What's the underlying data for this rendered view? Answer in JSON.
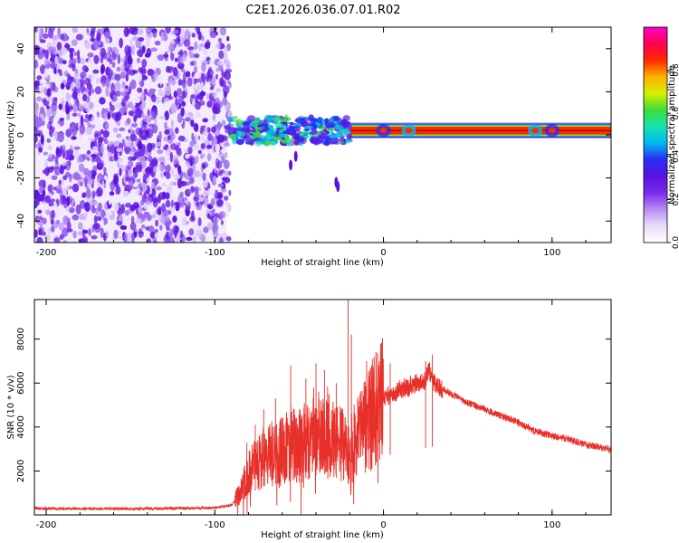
{
  "title": "C2E1.2026.036.07.01.R02",
  "colors": {
    "snr_line": "#e8302a",
    "colormap": [
      "#ffffff",
      "#e9ddfb",
      "#b78cf2",
      "#7b2bea",
      "#5a12e0",
      "#2a2cf5",
      "#00b9f0",
      "#14e3b0",
      "#3ddc3a",
      "#d6f000",
      "#ffb000",
      "#ff2a00",
      "#ff0050",
      "#ff00c8"
    ]
  },
  "chart_data": [
    {
      "type": "heatmap",
      "name": "spectrogram",
      "xlabel": "Height of straight line (km)",
      "ylabel": "Frequency (Hz)",
      "xlim": [
        -207,
        135
      ],
      "ylim": [
        -50,
        50
      ],
      "xticks": [
        -200,
        -100,
        0,
        100
      ],
      "yticks": [
        -40,
        -20,
        0,
        20,
        40
      ],
      "xtick_labels": [
        "-200",
        "-100",
        "0",
        "100"
      ],
      "ytick_labels": [
        "-40",
        "-20",
        "0",
        "20",
        "40"
      ],
      "noise_region_x": [
        -207,
        -93
      ],
      "signal_band_hz": [
        0,
        4
      ],
      "signal_band_x": [
        -93,
        135
      ],
      "blob_region_x": [
        -93,
        -20
      ],
      "colorbar": {
        "label": "Normalized spectral amplitude",
        "range": [
          0,
          1
        ],
        "ticks": [
          0,
          0.2,
          0.4,
          0.6,
          0.8
        ],
        "tick_labels": [
          "0.0",
          "0.2",
          "0.4",
          "0.6",
          "0.8"
        ]
      }
    },
    {
      "type": "line",
      "name": "snr",
      "xlabel": "Height of straight line (km)",
      "ylabel": "SNR (10 * v/v)",
      "xlim": [
        -207,
        135
      ],
      "ylim": [
        0,
        9800
      ],
      "xticks": [
        -200,
        -100,
        0,
        100
      ],
      "yticks": [
        2000,
        4000,
        6000,
        8000
      ],
      "xtick_labels": [
        "-200",
        "-100",
        "0",
        "100"
      ],
      "ytick_labels": [
        "2000",
        "4000",
        "6000",
        "8000"
      ],
      "series": [
        {
          "name": "SNR",
          "x": [
            -207,
            -150,
            -100,
            -90,
            -85,
            -80,
            -70,
            -60,
            -55,
            -50,
            -45,
            -40,
            -35,
            -30,
            -25,
            -21,
            -19,
            -15,
            -10,
            -5,
            0,
            5,
            10,
            20,
            25,
            27,
            30,
            40,
            50,
            60,
            70,
            80,
            90,
            100,
            110,
            120,
            130,
            135
          ],
          "values": [
            300,
            280,
            320,
            450,
            1000,
            1900,
            2700,
            2900,
            3300,
            3100,
            3400,
            3600,
            3700,
            3500,
            3200,
            2800,
            3000,
            3600,
            4300,
            4800,
            5300,
            5500,
            5700,
            6000,
            6100,
            6600,
            6000,
            5500,
            5100,
            4800,
            4500,
            4200,
            3800,
            3600,
            3450,
            3200,
            3050,
            3000
          ]
        }
      ],
      "spikes": [
        {
          "x": -86,
          "value": 1300
        },
        {
          "x": -81,
          "value": 3300
        },
        {
          "x": -76,
          "value": 4100
        },
        {
          "x": -71,
          "value": 4800
        },
        {
          "x": -64,
          "value": 5300
        },
        {
          "x": -55,
          "value": 6800
        },
        {
          "x": -46,
          "value": 6200
        },
        {
          "x": -40,
          "value": 6900
        },
        {
          "x": -35,
          "value": 6600
        },
        {
          "x": -28,
          "value": 6000
        },
        {
          "x": -21,
          "value": 9800
        },
        {
          "x": -19,
          "value": 8200
        },
        {
          "x": -10,
          "value": 7000
        },
        {
          "x": -7,
          "value": 6800
        },
        {
          "x": 4,
          "value": 6900
        },
        {
          "x": 25,
          "value": 7000
        },
        {
          "x": 29,
          "value": 7300
        }
      ]
    }
  ]
}
